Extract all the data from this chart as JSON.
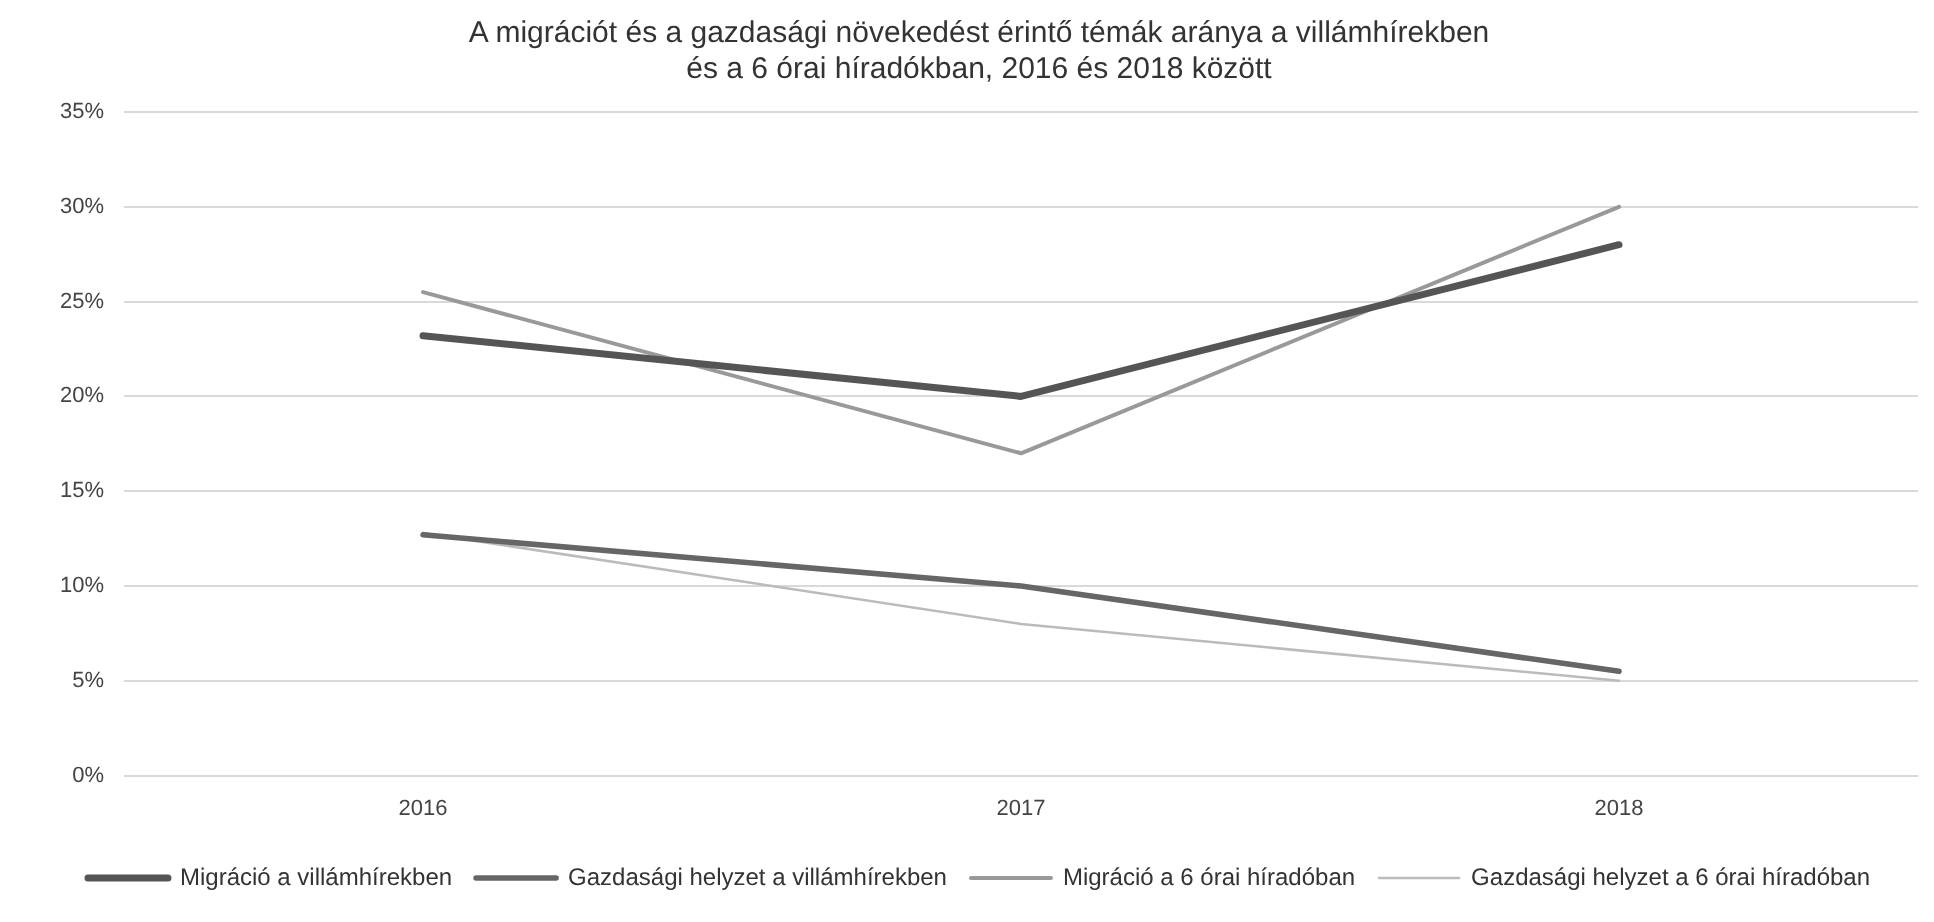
{
  "chart_data": {
    "type": "line",
    "title": [
      "A migrációt és a gazdasági növekedést érintő témák aránya a villámhírekben",
      "és a 6 órai híradókban, 2016 és 2018 között"
    ],
    "categories": [
      "2016",
      "2017",
      "2018"
    ],
    "series": [
      {
        "name": "Migráció a villámhírekben",
        "color": "#555555",
        "values": [
          23.2,
          20,
          28
        ]
      },
      {
        "name": "Gazdasági helyzet a villámhírekben",
        "color": "#666666",
        "values": [
          12.7,
          10,
          5.5
        ]
      },
      {
        "name": "Migráció a 6 órai híradóban",
        "color": "#999999",
        "values": [
          25.5,
          17,
          30
        ]
      },
      {
        "name": "Gazdasági helyzet a 6 órai híradóban",
        "color": "#bbbbbb",
        "values": [
          12.8,
          8,
          5
        ]
      }
    ],
    "ylim": [
      0,
      35
    ],
    "yticks": [
      {
        "value": 0,
        "label": "0%"
      },
      {
        "value": 5,
        "label": "5%"
      },
      {
        "value": 10,
        "label": "10%"
      },
      {
        "value": 15,
        "label": "15%"
      },
      {
        "value": 20,
        "label": "20%"
      },
      {
        "value": 25,
        "label": "25%"
      },
      {
        "value": 30,
        "label": "30%"
      },
      {
        "value": 35,
        "label": "35%"
      }
    ],
    "grid": "y",
    "legend": "bottom",
    "marker": "none",
    "line_style": "solid"
  }
}
